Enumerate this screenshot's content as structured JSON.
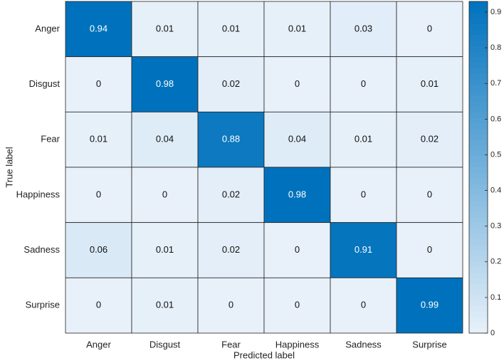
{
  "chart_data": {
    "type": "heatmap",
    "xlabel": "Predicted label",
    "ylabel": "True label",
    "x_categories": [
      "Anger",
      "Disgust",
      "Fear",
      "Happiness",
      "Sadness",
      "Surprise"
    ],
    "y_categories": [
      "Anger",
      "Disgust",
      "Fear",
      "Happiness",
      "Sadness",
      "Surprise"
    ],
    "values": [
      [
        0.94,
        0.01,
        0.01,
        0.01,
        0.03,
        0
      ],
      [
        0,
        0.98,
        0.02,
        0,
        0,
        0.01
      ],
      [
        0.01,
        0.04,
        0.88,
        0.04,
        0.01,
        0.02
      ],
      [
        0,
        0,
        0.02,
        0.98,
        0,
        0
      ],
      [
        0.06,
        0.01,
        0.02,
        0,
        0.91,
        0
      ],
      [
        0,
        0.01,
        0,
        0,
        0,
        0.99
      ]
    ],
    "colorbar_lim": [
      0,
      0.93
    ],
    "colorbar_ticks": [
      0,
      0.1,
      0.2,
      0.3,
      0.4,
      0.5,
      0.6,
      0.7,
      0.8,
      0.9
    ],
    "color_low": "#e8f1fa",
    "color_high": "#0072bd"
  }
}
